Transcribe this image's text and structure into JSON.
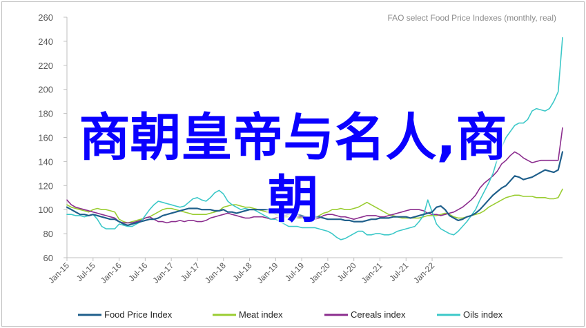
{
  "overlay": {
    "line1": "商朝皇帝与名人,商",
    "line2": "朝"
  },
  "chart_data": {
    "type": "line",
    "title": "FAO select Food Price Indexes (monthly, real)",
    "ylim": [
      60,
      260
    ],
    "yticks": [
      60,
      80,
      100,
      120,
      140,
      160,
      180,
      200,
      220,
      240,
      260
    ],
    "x_start": "Jan-15",
    "x_end": "Mar-22",
    "xtick_labels": [
      "Jan-15",
      "Jul-15",
      "Jan-16",
      "Jul-16",
      "Jan-17",
      "Jul-17",
      "Jan-18",
      "Jul-18",
      "Jan-19",
      "Jul-19",
      "Jan-20",
      "Jul-20",
      "Jan-21",
      "Jul-21",
      "Jan-22"
    ],
    "legend_position": "bottom",
    "series": [
      {
        "name": "Food Price Index",
        "color": "#1f5f8b",
        "values": [
          102,
          100,
          98,
          96,
          96,
          95,
          96,
          95,
          94,
          93,
          92,
          92,
          90,
          88,
          87,
          88,
          89,
          90,
          91,
          92,
          92,
          93,
          95,
          96,
          97,
          98,
          99,
          100,
          101,
          101,
          101,
          100,
          100,
          100,
          99,
          99,
          100,
          98,
          98,
          97,
          98,
          99,
          100,
          100,
          100,
          100,
          100,
          100,
          99,
          98,
          97,
          96,
          96,
          96,
          95,
          94,
          94,
          94,
          94,
          93,
          92,
          92,
          92,
          92,
          91,
          91,
          90,
          90,
          90,
          91,
          92,
          92,
          93,
          93,
          93,
          94,
          94,
          94,
          94,
          93,
          94,
          95,
          96,
          97,
          98,
          102,
          103,
          100,
          95,
          93,
          91,
          92,
          94,
          95,
          97,
          100,
          104,
          108,
          112,
          115,
          118,
          120,
          124,
          128,
          127,
          125,
          126,
          127,
          129,
          131,
          133,
          132,
          131,
          133,
          148
        ]
      },
      {
        "name": "Meat index",
        "color": "#9acd32",
        "values": [
          104,
          102,
          101,
          100,
          99,
          98,
          100,
          101,
          100,
          100,
          99,
          98,
          92,
          90,
          89,
          90,
          91,
          92,
          93,
          94,
          96,
          98,
          100,
          101,
          101,
          100,
          99,
          98,
          97,
          96,
          96,
          96,
          96,
          97,
          98,
          99,
          102,
          103,
          104,
          104,
          103,
          102,
          102,
          101,
          100,
          99,
          98,
          98,
          96,
          95,
          94,
          94,
          94,
          93,
          93,
          92,
          92,
          93,
          95,
          97,
          98,
          100,
          100,
          101,
          100,
          100,
          101,
          102,
          104,
          106,
          104,
          102,
          100,
          98,
          96,
          95,
          94,
          93,
          93,
          93,
          93,
          93,
          94,
          95,
          95,
          95,
          96,
          97,
          96,
          94,
          93,
          93,
          94,
          95,
          96,
          97,
          99,
          102,
          104,
          106,
          108,
          110,
          111,
          112,
          112,
          111,
          111,
          111,
          110,
          110,
          110,
          109,
          109,
          110,
          117
        ]
      },
      {
        "name": "Cereals index",
        "color": "#8b2d8e",
        "values": [
          108,
          104,
          102,
          101,
          100,
          99,
          98,
          97,
          96,
          95,
          94,
          93,
          90,
          89,
          89,
          89,
          90,
          91,
          93,
          94,
          92,
          90,
          90,
          89,
          90,
          90,
          91,
          90,
          91,
          91,
          90,
          90,
          91,
          93,
          94,
          95,
          96,
          97,
          96,
          95,
          94,
          93,
          93,
          94,
          94,
          94,
          93,
          92,
          93,
          94,
          95,
          96,
          95,
          94,
          94,
          93,
          93,
          92,
          93,
          95,
          96,
          96,
          95,
          94,
          94,
          93,
          92,
          93,
          94,
          95,
          95,
          95,
          94,
          94,
          95,
          96,
          97,
          98,
          99,
          100,
          100,
          100,
          99,
          97,
          96,
          96,
          95,
          96,
          97,
          98,
          100,
          102,
          105,
          108,
          112,
          118,
          122,
          125,
          128,
          132,
          138,
          141,
          145,
          148,
          146,
          143,
          141,
          139,
          140,
          141,
          141,
          141,
          141,
          141,
          168
        ]
      },
      {
        "name": "Oils index",
        "color": "#3cc8c8",
        "values": [
          96,
          96,
          95,
          95,
          94,
          95,
          96,
          92,
          86,
          84,
          84,
          84,
          88,
          87,
          86,
          86,
          88,
          90,
          95,
          100,
          104,
          107,
          106,
          105,
          104,
          103,
          102,
          103,
          106,
          109,
          110,
          108,
          107,
          110,
          114,
          116,
          113,
          107,
          104,
          102,
          100,
          101,
          100,
          100,
          98,
          96,
          94,
          92,
          92,
          90,
          88,
          86,
          86,
          86,
          85,
          85,
          85,
          85,
          84,
          83,
          82,
          80,
          77,
          75,
          76,
          78,
          80,
          82,
          82,
          79,
          79,
          80,
          80,
          79,
          79,
          80,
          82,
          83,
          84,
          85,
          86,
          90,
          95,
          108,
          98,
          88,
          84,
          82,
          80,
          79,
          82,
          86,
          90,
          95,
          100,
          108,
          115,
          122,
          130,
          142,
          152,
          160,
          165,
          170,
          172,
          172,
          175,
          182,
          184,
          183,
          182,
          184,
          190,
          198,
          243
        ]
      }
    ]
  }
}
